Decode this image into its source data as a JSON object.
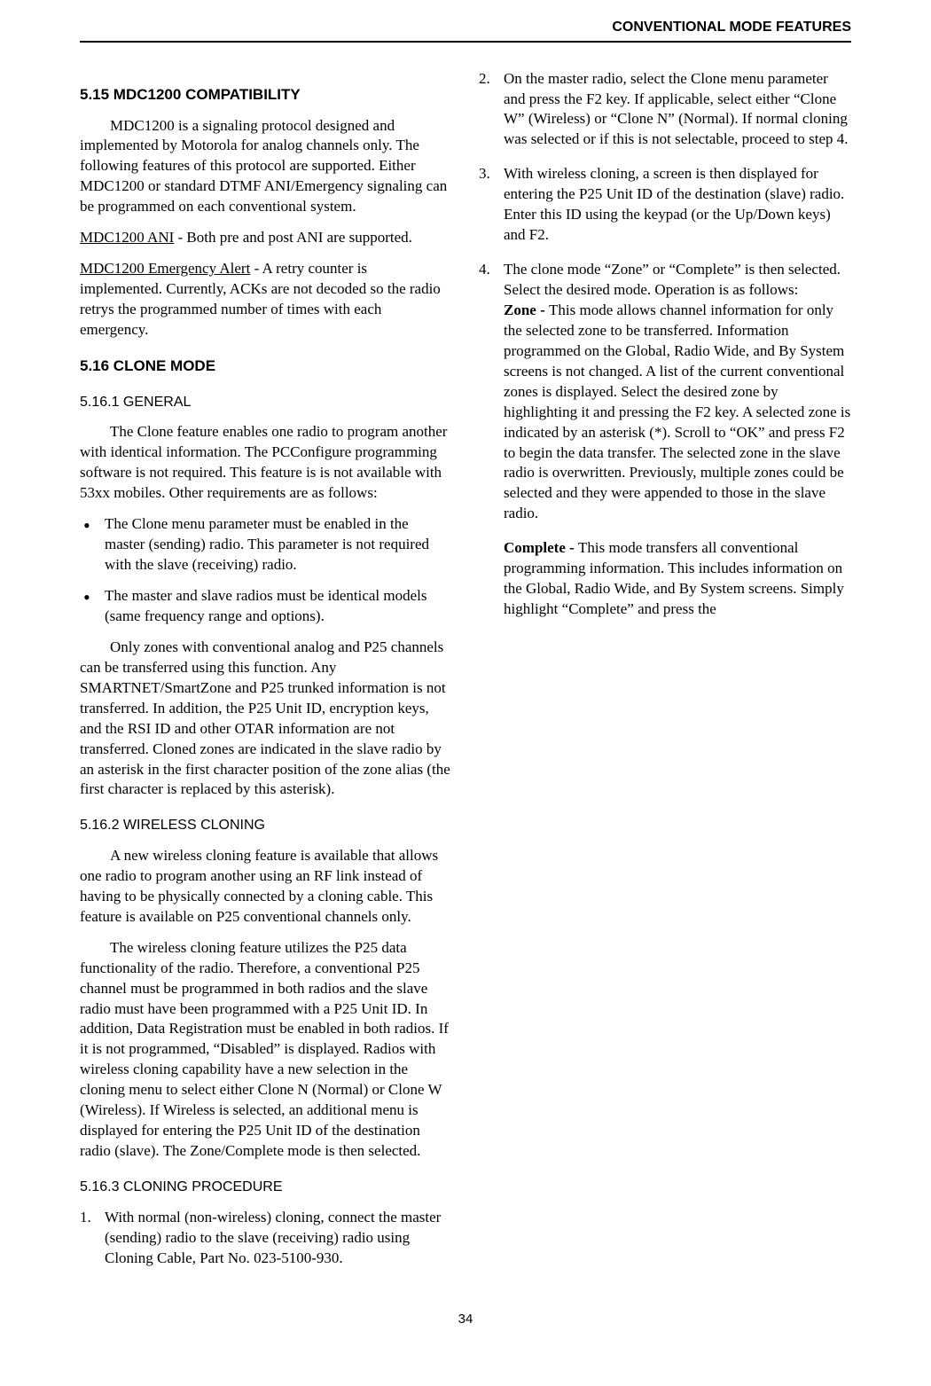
{
  "header": {
    "title": "CONVENTIONAL MODE FEATURES"
  },
  "s515": {
    "heading": "5.15 MDC1200 COMPATIBILITY",
    "p1": "MDC1200 is a signaling protocol designed and implemented by Motorola for analog channels only. The following features of this protocol are supported. Either MDC1200 or standard DTMF ANI/Emergency signaling can be programmed on each conventional system.",
    "ani_label": "MDC1200 ANI",
    "ani_text": " - Both pre and post ANI are supported.",
    "emg_label": "MDC1200 Emergency Alert",
    "emg_text": " - A retry counter is implemented. Currently, ACKs are not decoded so the radio retrys the programmed number of times with each emergency."
  },
  "s516": {
    "heading": "5.16 CLONE MODE",
    "s1": {
      "heading": "5.16.1  GENERAL",
      "p1": "The Clone feature enables one radio to program another with identical information. The PCConfigure programming software is not required. This feature is is not available with 53xx mobiles. Other requirements are as follows:",
      "b1": "The Clone menu parameter must be enabled in the master (sending) radio. This parameter is not required with the slave (receiving) radio.",
      "b2": "The master and slave radios must be identical models (same frequency range and options).",
      "p2": "Only zones with conventional analog and P25 channels can be transferred using this function. Any SMARTNET/SmartZone and P25 trunked information is not transferred. In addition, the P25 Unit ID, encryption keys, and the RSI ID and other OTAR information are not transferred. Cloned zones are indicated in the slave radio by an asterisk in the first character position of the zone alias (the first character is replaced by this asterisk)."
    },
    "s2": {
      "heading": "5.16.2  WIRELESS CLONING",
      "p1": "A new wireless cloning feature is available that allows one radio to program another using an RF link instead of having to be physically connected by a cloning cable. This feature is available on P25 conventional channels only.",
      "p2": "The wireless cloning feature utilizes the P25 data functionality of the radio. Therefore, a conventional P25 channel must be programmed in both radios and the slave radio must have been programmed with a P25 Unit ID. In addition, Data Registration must be enabled in both radios. If it is not programmed, “Disabled” is displayed. Radios with wireless cloning capability have a new selection in the cloning menu to select either Clone N (Normal) or Clone W (Wireless). If Wireless is selected, an additional menu is displayed for entering the P25 Unit ID of the destination radio (slave). The Zone/Complete mode is then selected."
    },
    "s3": {
      "heading": "5.16.3  CLONING PROCEDURE",
      "n1": "With normal (non-wireless) cloning, connect the master (sending) radio to the slave (receiving) radio using Cloning Cable, Part No. 023-5100-930.",
      "n2": "On the master radio, select the Clone menu parameter and press the F2 key. If applicable, select either “Clone W” (Wireless) or “Clone N” (Normal). If normal cloning was selected or if this is not selectable, proceed to step 4.",
      "n3": "With wireless cloning, a screen is then displayed for entering the P25 Unit ID of the destination (slave) radio. Enter this ID using the keypad (or the Up/Down keys) and F2.",
      "n4": "The clone mode “Zone” or “Complete” is then selected. Select the desired mode. Operation is as follows:",
      "zone_label": "Zone - ",
      "zone_text": "This mode allows channel information for only the selected zone to be transferred. Information programmed on the Global, Radio Wide, and By System screens is not changed. A list of the current conventional zones is displayed. Select the desired zone by highlighting it and pressing the F2 key. A selected zone is indicated by an asterisk (*). Scroll to “OK” and press F2 to begin the data transfer. The selected zone in the slave radio is overwritten. Previously, multiple zones could be selected and they were appended to those in the slave radio.",
      "complete_label": "Complete - ",
      "complete_text": "This mode transfers all conventional programming information. This includes information on the Global, Radio Wide, and By System screens. Simply highlight “Complete” and press the"
    }
  },
  "pageNumber": "34"
}
